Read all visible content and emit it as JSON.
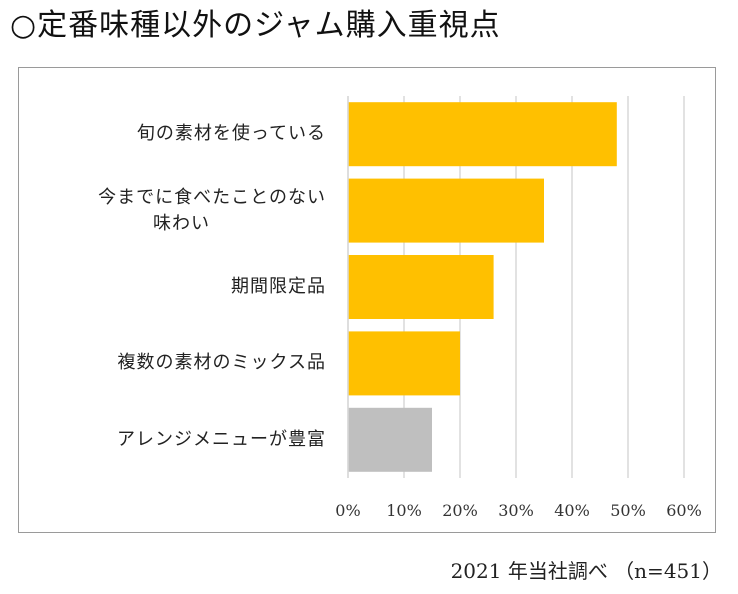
{
  "title": "○定番味種以外のジャム購入重視点",
  "note": "2021 年当社調べ （n=451）",
  "chart_data": {
    "type": "bar",
    "orientation": "horizontal",
    "categories": [
      [
        "旬の素材を使っている"
      ],
      [
        "今までに食べたことのない",
        "味わい"
      ],
      [
        "期間限定品"
      ],
      [
        "複数の素材のミックス品"
      ],
      [
        "アレンジメニューが豊富"
      ]
    ],
    "values": [
      48,
      35,
      26,
      20,
      15
    ],
    "bar_colors": [
      "#FFC000",
      "#FFC000",
      "#FFC000",
      "#FFC000",
      "#BFBFBF"
    ],
    "xlim": [
      0,
      60
    ],
    "xticks": [
      "0%",
      "10%",
      "20%",
      "30%",
      "40%",
      "50%",
      "60%"
    ],
    "grid": true,
    "legend": "none"
  }
}
